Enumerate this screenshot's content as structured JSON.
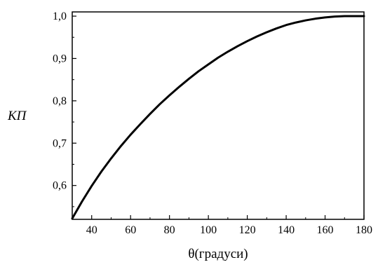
{
  "chart_data": {
    "type": "line",
    "title": "",
    "xlabel": "θ(градуси)",
    "ylabel": "КП",
    "xlim": [
      30,
      180
    ],
    "ylim": [
      0.52,
      1.01
    ],
    "x_ticks": [
      40,
      60,
      80,
      100,
      120,
      140,
      160,
      180
    ],
    "x_tick_labels": [
      "40",
      "60",
      "80",
      "100",
      "120",
      "140",
      "160",
      "180"
    ],
    "y_ticks": [
      0.6,
      0.7,
      0.8,
      0.9,
      1.0
    ],
    "y_tick_labels": [
      "0,6",
      "0,7",
      "0,8",
      "0,9",
      "1,0"
    ],
    "grid": false,
    "series": [
      {
        "x": [
          30,
          35,
          40,
          45,
          50,
          55,
          60,
          65,
          70,
          75,
          80,
          85,
          90,
          95,
          100,
          105,
          110,
          115,
          120,
          125,
          130,
          135,
          140,
          145,
          150,
          155,
          160,
          165,
          170,
          175,
          180
        ],
        "y": [
          0.522,
          0.562,
          0.599,
          0.633,
          0.664,
          0.693,
          0.72,
          0.745,
          0.769,
          0.792,
          0.813,
          0.833,
          0.852,
          0.87,
          0.886,
          0.902,
          0.916,
          0.929,
          0.941,
          0.952,
          0.962,
          0.971,
          0.979,
          0.985,
          0.99,
          0.994,
          0.997,
          0.999,
          1.0,
          1.0,
          1.0
        ],
        "color": "#000000"
      }
    ]
  }
}
